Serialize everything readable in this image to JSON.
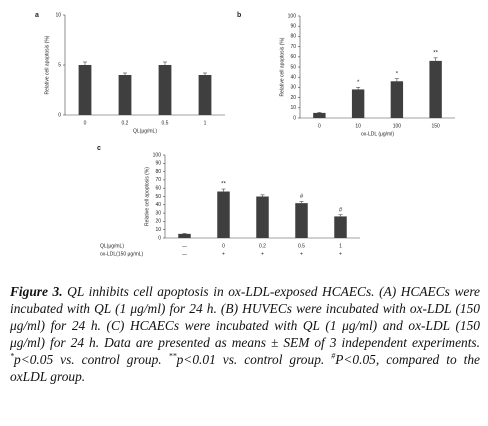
{
  "chart_data": [
    {
      "type": "bar",
      "panel": "a",
      "ylabel": "Relative cell apoptosis (%)",
      "xlabel": "QL(μg/mL)",
      "categories": [
        "0",
        "0.2",
        "0.5",
        "1"
      ],
      "values": [
        5,
        4,
        5,
        4
      ],
      "errors": [
        0.3,
        0.2,
        0.3,
        0.2
      ],
      "color": "#3f3f3f",
      "ylim": [
        0,
        10
      ],
      "yticks": [
        0,
        5,
        10
      ]
    },
    {
      "type": "bar",
      "panel": "b",
      "ylabel": "Relative cell apoptosis (%)",
      "xlabel": "ox-LDL (μg/ml)",
      "categories": [
        "0",
        "10",
        "100",
        "150"
      ],
      "values": [
        5,
        28,
        36,
        56
      ],
      "errors": [
        0.5,
        2,
        2.5,
        3
      ],
      "annotations": [
        null,
        "*",
        "*",
        "**"
      ],
      "color": "#3f3f3f",
      "ylim": [
        0,
        100
      ],
      "yticks": [
        0,
        10,
        20,
        30,
        40,
        50,
        60,
        70,
        80,
        90,
        100
      ]
    },
    {
      "type": "bar",
      "panel": "c",
      "ylabel": "Relative cell apoptosis (%)",
      "row_labels": [
        "QL(μg/mL)",
        "ox-LDL(150 μg/mL)"
      ],
      "categories": [
        "—",
        "0",
        "0.2",
        "0.5",
        "1"
      ],
      "categories2": [
        "—",
        "+",
        "+",
        "+",
        "+"
      ],
      "values": [
        5,
        56,
        50,
        42,
        26
      ],
      "errors": [
        0.5,
        3,
        2,
        2,
        2
      ],
      "annotations": [
        null,
        "**",
        null,
        "#",
        "#"
      ],
      "color": "#3f3f3f",
      "ylim": [
        0,
        100
      ],
      "yticks": [
        0,
        10,
        20,
        30,
        40,
        50,
        60,
        70,
        80,
        90,
        100
      ]
    }
  ],
  "caption": [
    "Figure 3.",
    " QL inhibits cell apoptosis in ox-LDL-exposed HCAECs. (A) HCAECs were incubated with QL (1 μg/ml) for 24 h. (B) HUVECs were incubated with ox-LDL (150 μg/ml) for 24 h. (C) HCAECs were incubated with QL (1 μg/ml) and ox-LDL (150 μg/ml) for 24 h. Data are presented as means ± SEM of 3 independent experiments. ",
    "*",
    "p<0.05 vs. control group. ",
    "**",
    "p<0.01 vs. control group. ",
    "#",
    "P<0.05, compared to the oxLDL group."
  ]
}
